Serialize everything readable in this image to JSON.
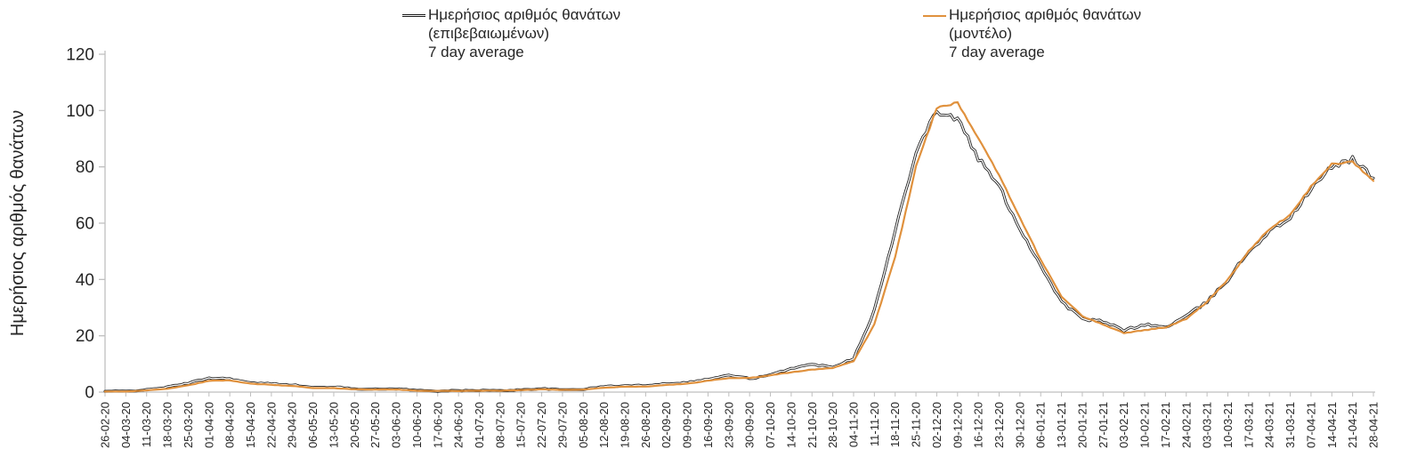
{
  "chart_data": {
    "type": "line",
    "title": "",
    "xlabel": "",
    "ylabel": "Ημερήσιος αριθμός θανάτων",
    "ylim": [
      0,
      120
    ],
    "yticks": [
      0,
      20,
      40,
      60,
      80,
      100,
      120
    ],
    "grid": false,
    "legend_position": "top",
    "categories": [
      "26-02-20",
      "04-03-20",
      "11-03-20",
      "18-03-20",
      "25-03-20",
      "01-04-20",
      "08-04-20",
      "15-04-20",
      "22-04-20",
      "29-04-20",
      "06-05-20",
      "13-05-20",
      "20-05-20",
      "27-05-20",
      "03-06-20",
      "10-06-20",
      "17-06-20",
      "24-06-20",
      "01-07-20",
      "08-07-20",
      "15-07-20",
      "22-07-20",
      "29-07-20",
      "05-08-20",
      "12-08-20",
      "19-08-20",
      "26-08-20",
      "02-09-20",
      "09-09-20",
      "16-09-20",
      "23-09-20",
      "30-09-20",
      "07-10-20",
      "14-10-20",
      "21-10-20",
      "28-10-20",
      "04-11-20",
      "11-11-20",
      "18-11-20",
      "25-11-20",
      "02-12-20",
      "09-12-20",
      "16-12-20",
      "23-12-20",
      "30-12-20",
      "06-01-21",
      "13-01-21",
      "20-01-21",
      "27-01-21",
      "03-02-21",
      "10-02-21",
      "17-02-21",
      "24-02-21",
      "03-03-21",
      "10-03-21",
      "17-03-21",
      "24-03-21",
      "31-03-21",
      "07-04-21",
      "14-04-21",
      "21-04-21",
      "28-04-21"
    ],
    "series": [
      {
        "name": "Ημερήσιος αριθμός θανάτων (επιβεβαιωμένων) 7 day average",
        "color": "#1a1a1a",
        "style": "double-line",
        "values": [
          0.3,
          0.3,
          0.8,
          1.8,
          3.2,
          5,
          4.8,
          3.2,
          3,
          2.6,
          1.6,
          1.8,
          1.2,
          1,
          1.2,
          0.6,
          0.4,
          0.5,
          0.6,
          0.5,
          0.8,
          1.2,
          0.8,
          1,
          2,
          2.2,
          2.4,
          3,
          3.4,
          4.6,
          6,
          4.8,
          6,
          8.5,
          9.8,
          9,
          12,
          29,
          57,
          86,
          100,
          97,
          83,
          73,
          58,
          45,
          32,
          26,
          25,
          22,
          24,
          23,
          27,
          32,
          40,
          50,
          57,
          62,
          72,
          80,
          83,
          76
        ]
      },
      {
        "name": "Ημερήσιος αριθμός θανάτων (μοντέλο) 7 day average",
        "color": "#e0913d",
        "style": "solid-line",
        "values": [
          0.2,
          0.2,
          0.6,
          1.2,
          2.4,
          4,
          4.2,
          3,
          2.6,
          2.2,
          1.4,
          1.4,
          1,
          0.9,
          0.9,
          0.5,
          0.4,
          0.4,
          0.5,
          0.5,
          0.7,
          1,
          0.8,
          0.9,
          1.6,
          1.9,
          2,
          2.5,
          3,
          4,
          5,
          5,
          6,
          7,
          8,
          8.5,
          11,
          24,
          48,
          80,
          101,
          103,
          90,
          77,
          62,
          47,
          34,
          27,
          24,
          21,
          22,
          23,
          26,
          32,
          40,
          50,
          58,
          63,
          73,
          81,
          82,
          75
        ]
      }
    ],
    "legend": {
      "entries": [
        {
          "lines": [
            "Ημερήσιος αριθμός θανάτων",
            "(επιβεβαιωμένων)",
            "7 day average"
          ]
        },
        {
          "lines": [
            "Ημερήσιος αριθμός θανάτων",
            "(μοντέλο)",
            "7 day average"
          ]
        }
      ]
    },
    "axis_color": "#bfbfbf",
    "tick_label_color": "#262626"
  }
}
